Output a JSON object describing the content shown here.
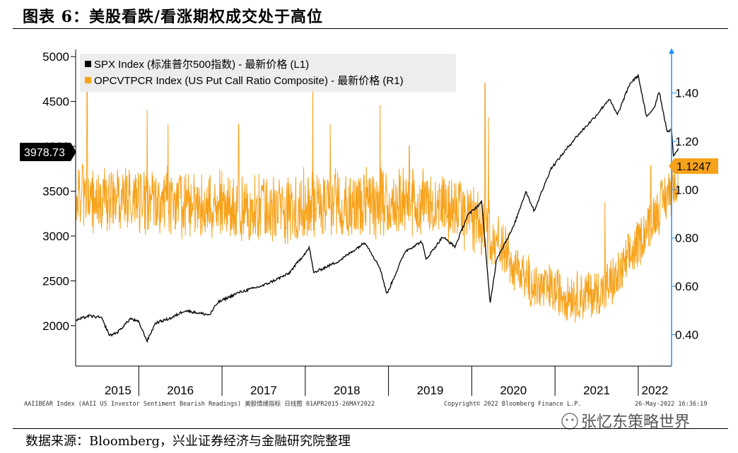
{
  "header": {
    "title": "图表 6：美股看跌/看涨期权成交处于高位"
  },
  "footer": {
    "source": "数据来源：Bloomberg，兴业证券经济与金融研究院整理",
    "bloomberg_note_left": "AAIIBEAR Index (AAII US Investor Sentiment Bearish Readings) 美股情绪指标   日线图 01APR2015-26MAY2022",
    "bloomberg_note_mid": "Copyright© 2022 Bloomberg Finance L.P.",
    "bloomberg_note_right": "26-May-2022 16:36:19",
    "watermark": "张忆东策略世界"
  },
  "colors": {
    "spx": "#000000",
    "pcr": "#f7a21b",
    "right_axis": "#1e90ff",
    "last_value_pcr_bg": "#f7a21b",
    "last_value_spx_bg": "#000000",
    "legend_bg": "#ececec"
  },
  "chart_data": {
    "type": "line",
    "x_tick_labels": [
      "2015",
      "2016",
      "2017",
      "2018",
      "2019",
      "2020",
      "2021",
      "2022"
    ],
    "x_range": [
      "2015-04-01",
      "2022-05-26"
    ],
    "y_left": {
      "ticks": [
        2000,
        2500,
        3000,
        3500,
        4000,
        4500,
        5000
      ],
      "range": [
        1550,
        5080
      ]
    },
    "y_right": {
      "ticks": [
        "0.40",
        "0.60",
        "0.80",
        "1.00",
        "1.20",
        "1.40"
      ],
      "range": [
        0.27,
        1.58
      ]
    },
    "legend": [
      "SPX Index (标准普尔500指数) - 最新价格 (L1)",
      "OPCVTPCR Index (US Put Call Ratio Composite) - 最新价格 (R1)"
    ],
    "last_values": {
      "spx": "3978.73",
      "pcr": "1.1247"
    },
    "series": [
      {
        "name": "SPX Index (标准普尔500指数) - 最新价格 (L1)",
        "axis": "left",
        "anchors": [
          [
            2015.25,
            2060
          ],
          [
            2015.4,
            2110
          ],
          [
            2015.55,
            2090
          ],
          [
            2015.65,
            1890
          ],
          [
            2015.75,
            1930
          ],
          [
            2015.9,
            2080
          ],
          [
            2016.0,
            2040
          ],
          [
            2016.1,
            1830
          ],
          [
            2016.2,
            2030
          ],
          [
            2016.4,
            2090
          ],
          [
            2016.55,
            2170
          ],
          [
            2016.85,
            2120
          ],
          [
            2016.95,
            2260
          ],
          [
            2017.2,
            2370
          ],
          [
            2017.5,
            2450
          ],
          [
            2017.8,
            2580
          ],
          [
            2018.05,
            2870
          ],
          [
            2018.1,
            2590
          ],
          [
            2018.4,
            2720
          ],
          [
            2018.72,
            2930
          ],
          [
            2018.9,
            2640
          ],
          [
            2018.98,
            2350
          ],
          [
            2019.2,
            2830
          ],
          [
            2019.4,
            2940
          ],
          [
            2019.45,
            2740
          ],
          [
            2019.65,
            2990
          ],
          [
            2019.8,
            2880
          ],
          [
            2019.95,
            3230
          ],
          [
            2020.12,
            3380
          ],
          [
            2020.22,
            2240
          ],
          [
            2020.3,
            2750
          ],
          [
            2020.5,
            3100
          ],
          [
            2020.65,
            3500
          ],
          [
            2020.75,
            3280
          ],
          [
            2020.95,
            3750
          ],
          [
            2021.25,
            4100
          ],
          [
            2021.5,
            4350
          ],
          [
            2021.65,
            4530
          ],
          [
            2021.75,
            4350
          ],
          [
            2021.9,
            4700
          ],
          [
            2022.0,
            4790
          ],
          [
            2022.1,
            4320
          ],
          [
            2022.2,
            4450
          ],
          [
            2022.25,
            4620
          ],
          [
            2022.35,
            4150
          ],
          [
            2022.4,
            4200
          ],
          [
            2022.42,
            3900
          ],
          [
            2022.45,
            3920
          ],
          [
            2022.48,
            3978.73
          ]
        ]
      },
      {
        "name": "OPCVTPCR Index (US Put Call Ratio Composite) - 最新价格 (R1)",
        "axis": "right",
        "baseline": [
          [
            2015.25,
            0.98
          ],
          [
            2015.75,
            0.96
          ],
          [
            2016.25,
            0.95
          ],
          [
            2016.75,
            0.93
          ],
          [
            2017.25,
            0.92
          ],
          [
            2017.75,
            0.92
          ],
          [
            2018.25,
            0.95
          ],
          [
            2018.75,
            0.94
          ],
          [
            2019.25,
            0.95
          ],
          [
            2019.75,
            0.92
          ],
          [
            2020.0,
            0.88
          ],
          [
            2020.25,
            0.82
          ],
          [
            2020.5,
            0.68
          ],
          [
            2020.75,
            0.6
          ],
          [
            2021.0,
            0.58
          ],
          [
            2021.25,
            0.56
          ],
          [
            2021.5,
            0.57
          ],
          [
            2021.75,
            0.63
          ],
          [
            2022.0,
            0.78
          ],
          [
            2022.2,
            0.9
          ],
          [
            2022.48,
            1.05
          ]
        ],
        "spikes": [
          [
            2015.38,
            1.47
          ],
          [
            2016.1,
            1.33
          ],
          [
            2016.35,
            1.27
          ],
          [
            2017.2,
            1.27
          ],
          [
            2018.09,
            1.46
          ],
          [
            2018.3,
            1.27
          ],
          [
            2018.9,
            1.35
          ],
          [
            2019.25,
            1.18
          ],
          [
            2020.16,
            1.44
          ],
          [
            2020.2,
            1.3
          ],
          [
            2021.6,
            0.95
          ],
          [
            2022.15,
            1.1
          ],
          [
            2022.4,
            1.15
          ],
          [
            2022.48,
            1.1247
          ]
        ],
        "last_value": 1.1247
      }
    ]
  }
}
